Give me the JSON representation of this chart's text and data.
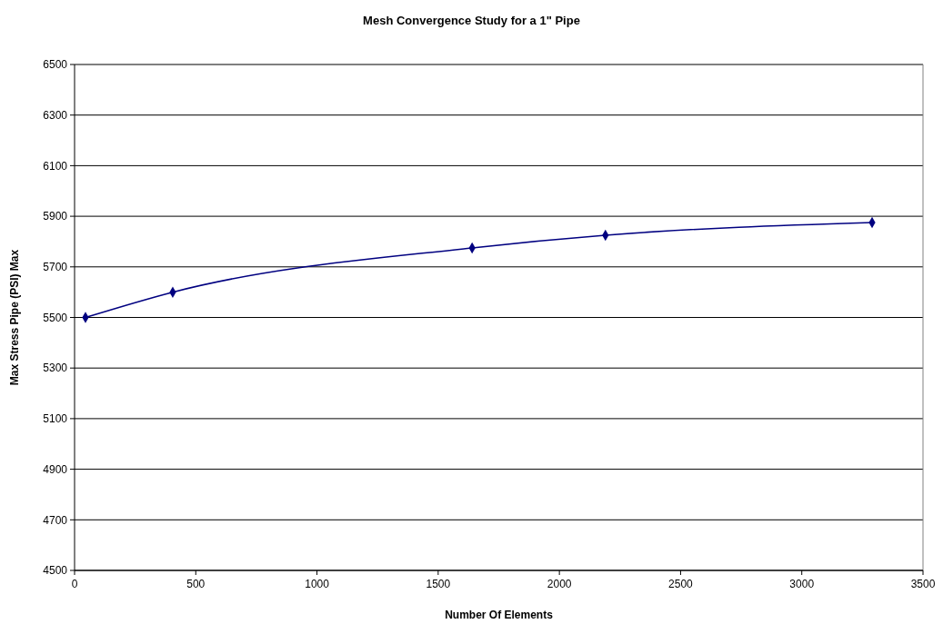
{
  "chart_data": {
    "type": "line",
    "title": "Mesh Convergence Study for a 1\" Pipe",
    "xlabel": "Number Of Elements",
    "ylabel": "Max Stress Pipe (PSI) Max",
    "x": [
      45,
      405,
      1640,
      2190,
      3290
    ],
    "series": [
      {
        "color": "#000080",
        "values": [
          5500,
          5600,
          5775,
          5825,
          5875
        ]
      }
    ],
    "xlim": [
      0,
      3500
    ],
    "xticks": [
      0,
      500,
      1000,
      1500,
      2000,
      2500,
      3000,
      3500
    ],
    "ylim": [
      4500,
      6500
    ],
    "yticks": [
      4500,
      4700,
      4900,
      5100,
      5300,
      5500,
      5700,
      5900,
      6100,
      6300,
      6500
    ],
    "grid": "y",
    "marker": "diamond",
    "line_style": "solid"
  }
}
